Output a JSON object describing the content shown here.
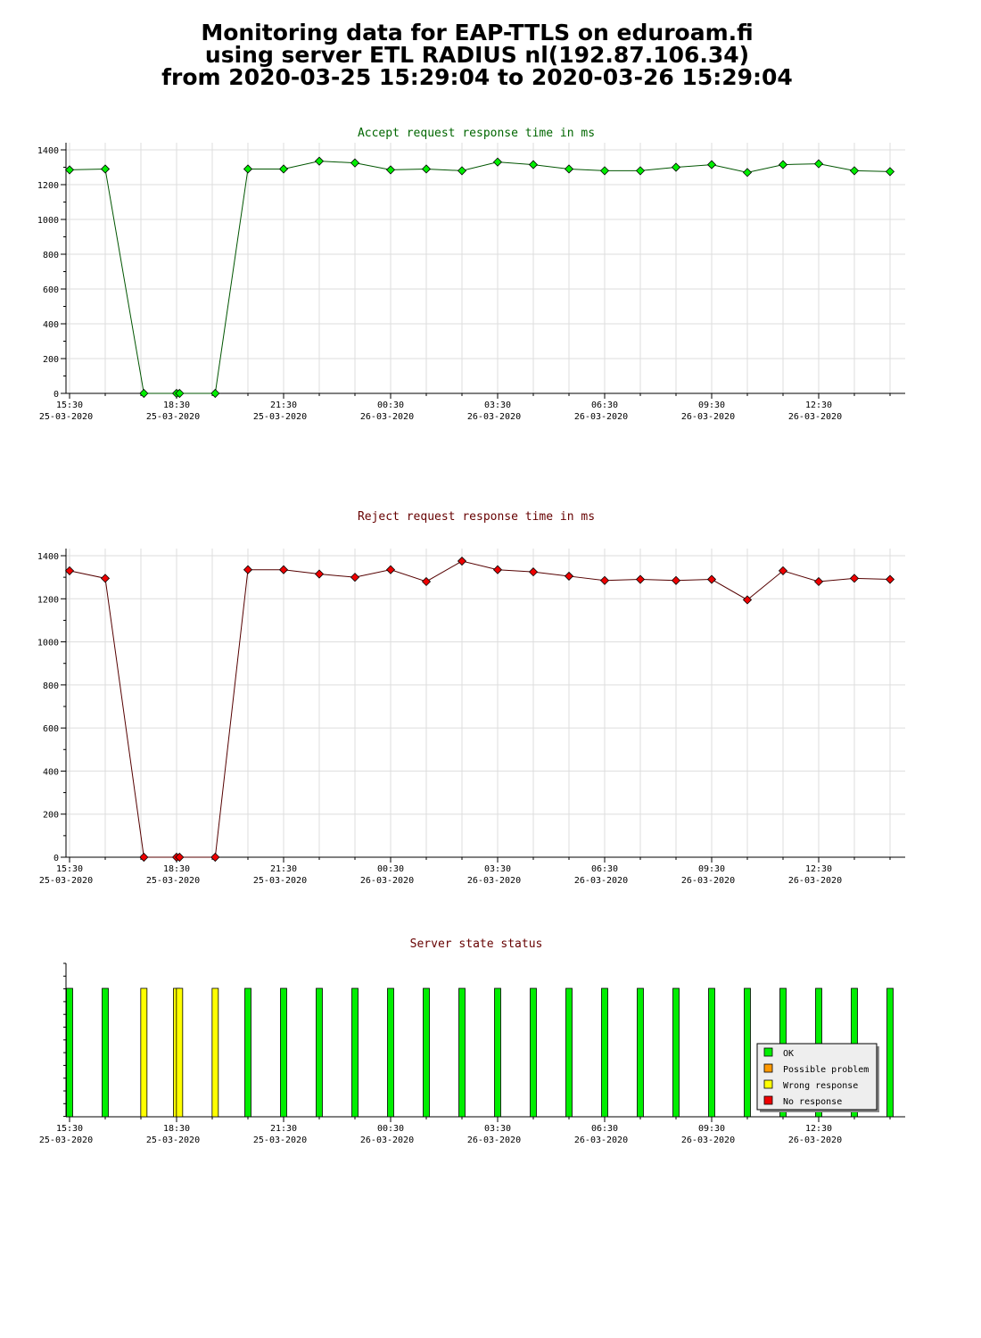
{
  "header": {
    "line1": "Monitoring data for EAP-TTLS on eduroam.fi",
    "line2": "using server ETL RADIUS nl(192.87.106.34)",
    "line3": "from 2020-03-25 15:29:04 to 2020-03-26 15:29:04"
  },
  "x_ticks": [
    {
      "time": "15:30",
      "date": "25-03-2020"
    },
    {
      "time": "18:30",
      "date": "25-03-2020"
    },
    {
      "time": "21:30",
      "date": "25-03-2020"
    },
    {
      "time": "00:30",
      "date": "26-03-2020"
    },
    {
      "time": "03:30",
      "date": "26-03-2020"
    },
    {
      "time": "06:30",
      "date": "26-03-2020"
    },
    {
      "time": "09:30",
      "date": "26-03-2020"
    },
    {
      "time": "12:30",
      "date": "26-03-2020"
    }
  ],
  "chart_data": [
    {
      "type": "line",
      "title": "Accept request response time in ms",
      "color": "#00ee00",
      "line_color": "#005500",
      "title_color": "#006600",
      "ylim": [
        0,
        1400
      ],
      "yticks": [
        0,
        200,
        400,
        600,
        800,
        1000,
        1200,
        1400
      ],
      "x": [
        "15:30",
        "16:30",
        "17:35",
        "18:30",
        "18:35",
        "19:35",
        "20:30",
        "21:30",
        "22:30",
        "23:30",
        "00:30",
        "01:30",
        "02:30",
        "03:30",
        "04:30",
        "05:30",
        "06:30",
        "07:30",
        "08:30",
        "09:30",
        "10:30",
        "11:30",
        "12:30",
        "13:30",
        "14:30"
      ],
      "values": [
        1285,
        1290,
        0,
        0,
        0,
        0,
        1290,
        1290,
        1335,
        1325,
        1285,
        1290,
        1280,
        1330,
        1315,
        1290,
        1280,
        1280,
        1300,
        1315,
        1270,
        1315,
        1320,
        1280,
        1275
      ]
    },
    {
      "type": "line",
      "title": "Reject request response time in ms",
      "color": "#ee0000",
      "line_color": "#550000",
      "title_color": "#660000",
      "ylim": [
        0,
        1400
      ],
      "yticks": [
        0,
        200,
        400,
        600,
        800,
        1000,
        1200,
        1400
      ],
      "x": [
        "15:30",
        "16:30",
        "17:35",
        "18:30",
        "18:35",
        "19:35",
        "20:30",
        "21:30",
        "22:30",
        "23:30",
        "00:30",
        "01:30",
        "02:30",
        "03:30",
        "04:30",
        "05:30",
        "06:30",
        "07:30",
        "08:30",
        "09:30",
        "10:30",
        "11:30",
        "12:30",
        "13:30",
        "14:30"
      ],
      "values": [
        1330,
        1295,
        0,
        0,
        0,
        0,
        1335,
        1335,
        1315,
        1300,
        1335,
        1280,
        1375,
        1335,
        1325,
        1305,
        1285,
        1290,
        1285,
        1290,
        1195,
        1330,
        1280,
        1295,
        1290
      ]
    },
    {
      "type": "bar",
      "title": "Server state status",
      "title_color": "#660000",
      "x": [
        "15:30",
        "16:30",
        "17:35",
        "18:30",
        "18:35",
        "19:35",
        "20:30",
        "21:30",
        "22:30",
        "23:30",
        "00:30",
        "01:30",
        "02:30",
        "03:30",
        "04:30",
        "05:30",
        "06:30",
        "07:30",
        "08:30",
        "09:30",
        "10:30",
        "11:30",
        "12:30",
        "13:30",
        "14:30"
      ],
      "status": [
        "OK",
        "OK",
        "Wrong response",
        "Wrong response",
        "Wrong response",
        "Wrong response",
        "OK",
        "OK",
        "OK",
        "OK",
        "OK",
        "OK",
        "OK",
        "OK",
        "OK",
        "OK",
        "OK",
        "OK",
        "OK",
        "OK",
        "OK",
        "OK",
        "OK",
        "OK",
        "OK"
      ],
      "legend": [
        {
          "label": "OK",
          "color": "#00ee00"
        },
        {
          "label": "Possible problem",
          "color": "#ff9900"
        },
        {
          "label": "Wrong response",
          "color": "#ffff00"
        },
        {
          "label": "No response",
          "color": "#ee0000"
        }
      ],
      "legend_position": "bottom-right"
    }
  ]
}
